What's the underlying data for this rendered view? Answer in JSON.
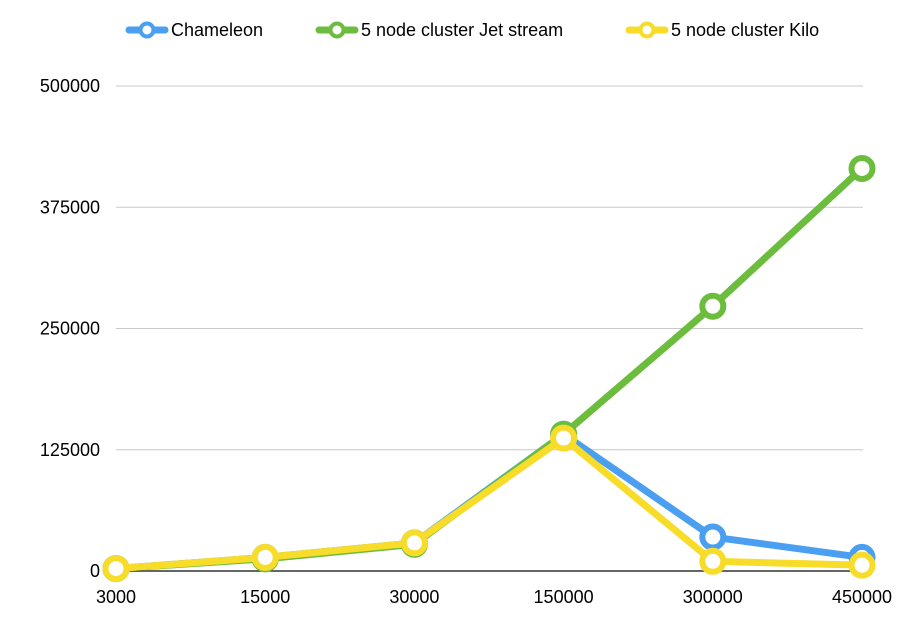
{
  "chart_data": {
    "type": "line",
    "categories": [
      "3000",
      "15000",
      "30000",
      "150000",
      "300000",
      "450000"
    ],
    "series": [
      {
        "name": "Chameleon",
        "color": "#4a9ff0",
        "values": [
          2500,
          14000,
          29000,
          141000,
          35000,
          14000
        ]
      },
      {
        "name": "5 node cluster Jet stream",
        "color": "#6cbd3e",
        "values": [
          2500,
          12500,
          27500,
          141000,
          273000,
          415000
        ]
      },
      {
        "name": "5 node cluster Kilo",
        "color": "#f7dc2a",
        "values": [
          2500,
          14000,
          29000,
          137000,
          10000,
          6000
        ]
      }
    ],
    "yticks": [
      "0",
      "125000",
      "250000",
      "375000",
      "500000"
    ],
    "ylim": [
      0,
      500000
    ],
    "grid": true,
    "legend_position": "top"
  }
}
